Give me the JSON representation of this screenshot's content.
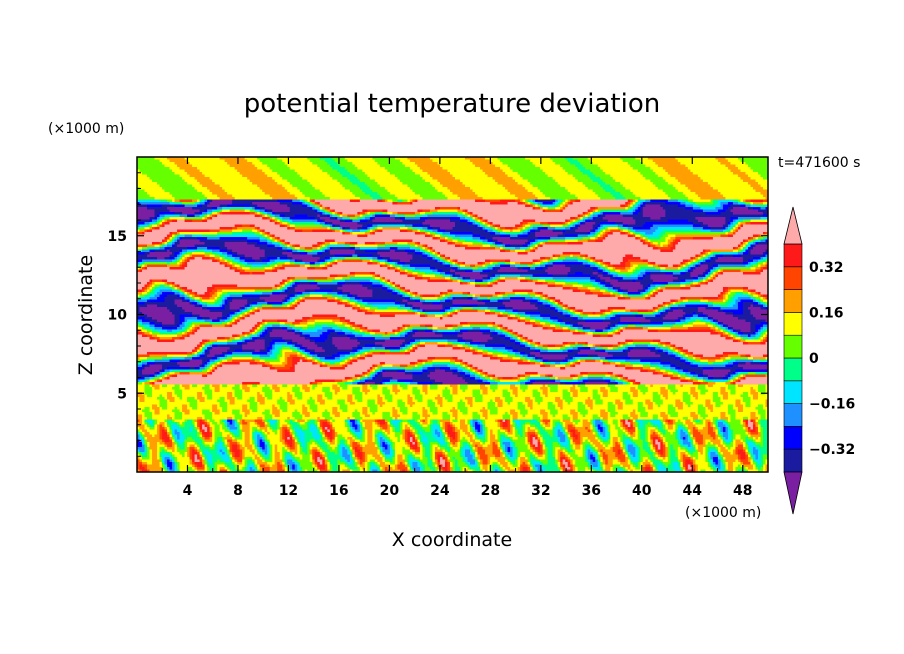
{
  "chart_data": {
    "type": "heatmap",
    "title": "potential temperature deviation",
    "xlabel": "X coordinate",
    "ylabel": "Z coordinate",
    "x_unit": "(×1000 m)",
    "y_unit": "(×1000 m)",
    "time_label": "t=471600 s",
    "xlim": [
      0,
      50
    ],
    "ylim": [
      0,
      20
    ],
    "x_ticks": [
      4,
      8,
      12,
      16,
      20,
      24,
      28,
      32,
      36,
      40,
      44,
      48
    ],
    "y_ticks": [
      5,
      10,
      15
    ],
    "colorbar": {
      "levels": [
        -0.48,
        -0.4,
        -0.32,
        -0.24,
        -0.16,
        -0.08,
        0,
        0.08,
        0.16,
        0.24,
        0.32,
        0.4
      ],
      "labels": [
        "0.32",
        "0.16",
        "0",
        "-0.16",
        "-0.32"
      ],
      "label_values": [
        0.32,
        0.16,
        0,
        -0.16,
        -0.32
      ],
      "colors": [
        "#7a1fa2",
        "#1b1ba0",
        "#0000ff",
        "#1e90ff",
        "#00e5ff",
        "#00ff88",
        "#66ff00",
        "#ffff00",
        "#ffa000",
        "#ff4500",
        "#ff1a1a",
        "#ffaaaa"
      ],
      "extend": "both"
    },
    "bands": [
      {
        "z_range": [
          17,
          20
        ],
        "dominant": "0"
      },
      {
        "z_range": [
          5.5,
          17
        ],
        "dominant": "alternating layers of -0.48 and 0.4"
      },
      {
        "z_range": [
          3.5,
          5.5
        ],
        "dominant": "0 to 0.08"
      },
      {
        "z_range": [
          0,
          3.5
        ],
        "dominant": "mixed -0.3 to 0.3"
      }
    ]
  }
}
